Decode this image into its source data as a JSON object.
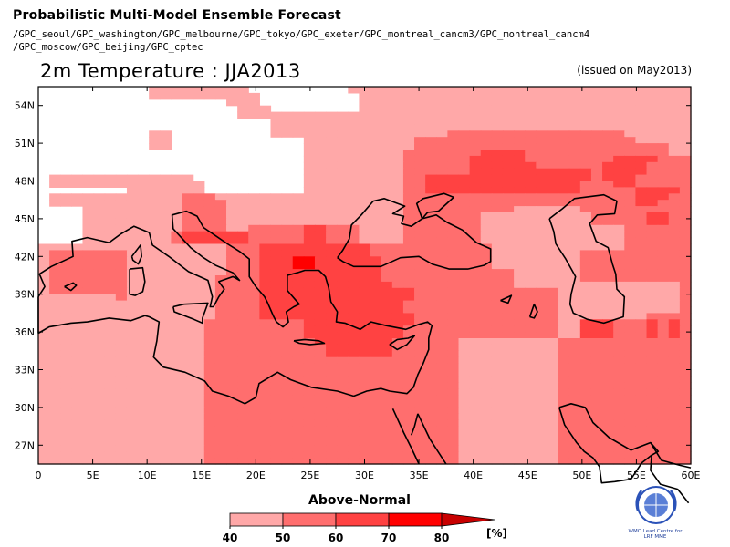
{
  "header": {
    "title": "Probabilistic Multi-Model Ensemble Forecast",
    "models_line1": "/GPC_seoul/GPC_washington/GPC_melbourne/GPC_tokyo/GPC_exeter/GPC_montreal_cancm3/GPC_montreal_cancm4",
    "models_line2": "/GPC_moscow/GPC_beijing/GPC_cptec"
  },
  "map": {
    "title": "2m Temperature : JJA2013",
    "issued": "(issued on May2013)",
    "lon_ticks": [
      "0",
      "5E",
      "10E",
      "15E",
      "20E",
      "25E",
      "30E",
      "35E",
      "40E",
      "45E",
      "50E",
      "55E",
      "60E"
    ],
    "lat_ticks": [
      "54N",
      "51N",
      "48N",
      "45N",
      "42N",
      "39N",
      "36N",
      "33N",
      "30N",
      "27N"
    ],
    "lon_values": [
      0,
      5,
      10,
      15,
      20,
      25,
      30,
      35,
      40,
      45,
      50,
      55,
      60
    ],
    "lat_values": [
      54,
      51,
      48,
      45,
      42,
      39,
      36,
      33,
      30,
      27
    ],
    "lon_range": [
      0,
      60
    ],
    "lat_range": [
      25.5,
      55.5
    ],
    "colors": {
      "white": "#ffffff",
      "c40": "#ffa8a8",
      "c50": "#ff6e6e",
      "c60": "#ff4242",
      "c70": "#ff0000",
      "c80": "#d00000"
    },
    "grid_key": "0 = <40, 1 = 40-50, 2 = 50-60, 3 = 60-70, 4 = 70-80, 5 = >80",
    "grid": [
      "00000000001111111110000000001111111111111111111111111111111",
      "00000000001111111111000000000111111111111111111111111111111",
      "00000000000000000111000000000111111111111111111111111111111",
      "00000000000000000011100000000111111111111111111111111111111",
      "00000000000000000011111111111111111111111111111111111111111",
      "00000000000000000000011111111111111111111111111111111111111",
      "00000000000000000000011111111111111111111111111111111111111",
      "00000000001100000000011111111111111112222222222222222111111",
      "00000000001100000000000011111111112222222222222222222211111",
      "00000000001100000000000011111111112222222222222222222222211",
      "00000000000000000000000011111111122222223333222222222222211",
      "00000000000000000000000011111111122222233333222222223333222",
      "00000000000000000000000011111111122222233333322222233332222",
      "00000000000000000000000011111111122222233333333333233332222",
      "01111111111111000000000011111111122333333333333333233322222",
      "01111111111111100000000011111111122333333333333332223322222",
      "00000000111111100000000011111111122333333333333332222233332",
      "01111111111112221111111111111111122222222222222222222233322",
      "01111111111112222111111111111111122222222222222222222233222",
      "00001111111112222111111111111111122222222221111112222222222",
      "00001111111112222111111111111111122222221111111111222223322",
      "00001111111112222111111111111111122222221111111111222223322",
      "00001111111112222112222233222111122222221111111111111222222",
      "00001111111123333332222233222111122222221111111111111222222",
      "00001111111123333332222233222111122222221111111111111222222",
      "11111111111111111222333333333322222222222111111111111222222",
      "12222222111111111222333333333322222222222111111112222222222",
      "12222222111111111222333443333332222222222111111112222222222",
      "12222222111111111222333443333332222222222111111112222222222",
      "12222222111111111222333333333332222222222221111112222222222",
      "12222222111111112222333333333332222222222221111112222222222",
      "12222222111111112222333333333333222222222221111111111111112",
      "12222222111111112222333333333333332222222222222111111111112",
      "11111112111111112222333333333333332222222222222111111111112",
      "11111111111111112222333333333333322222222222222111111111112",
      "11111111111111112222333333333333322222222222222111111111112",
      "11111111111111112222333333333333332222222222222111111112222",
      "11111111111111122222222233333333332222222222222113332223232",
      "11111111111111122222222233333333322222222222222113332223232",
      "11111111111111122222222233333333322222222222222113332223232",
      "11111111111111122222222223333333222222111111111222222222222",
      "11111111111111122222222222333333222222111111111222222222222",
      "11111111111111122222222222333333222222111111111222222222222",
      "11111111111111122222222222222222222222111111111222222222222",
      "11111111111111122222222222222222222222111111111222222222222",
      "11111111111111122222222222222222222222111111111222222222222",
      "11111111111111122222222222222222222222111111111222222222222",
      "11111111111111122222222222222222222222111111111222222222222",
      "11111111111111122222222222222222222222111111111222222222222",
      "11111111111111122222222222222222222222111111111222222222222",
      "11111111111111122222222222222222222222111111111222222222222",
      "11111111111111122222222222222222222222111111111222222222222",
      "11111111111111122222222222222222222222111111111222222222222",
      "11111111111111122222222222222222222222111111111222222222222",
      "11111111111111122222222222222222222222111111111222222222222",
      "11111111111111122222222222222222222222111111111222222222222",
      "11111111111111122222222222222222222222111111111222222222222",
      "11111111111111122222222222222222222222111111111222222222222",
      "11111111111111122222222222222222222222111111111222222222222",
      "11111111111111122222222222222222222222111111111222222222222"
    ]
  },
  "legend": {
    "title": "Above-Normal",
    "labels": [
      "40",
      "50",
      "60",
      "70",
      "80"
    ],
    "unit": "[%]",
    "colors": [
      "#ffa8a8",
      "#ff6e6e",
      "#ff4242",
      "#ff0000"
    ],
    "arrow_color": "#c80000"
  },
  "logo": {
    "caption_line1": "WMO Lead Centre for",
    "caption_line2": "LRF MME"
  }
}
